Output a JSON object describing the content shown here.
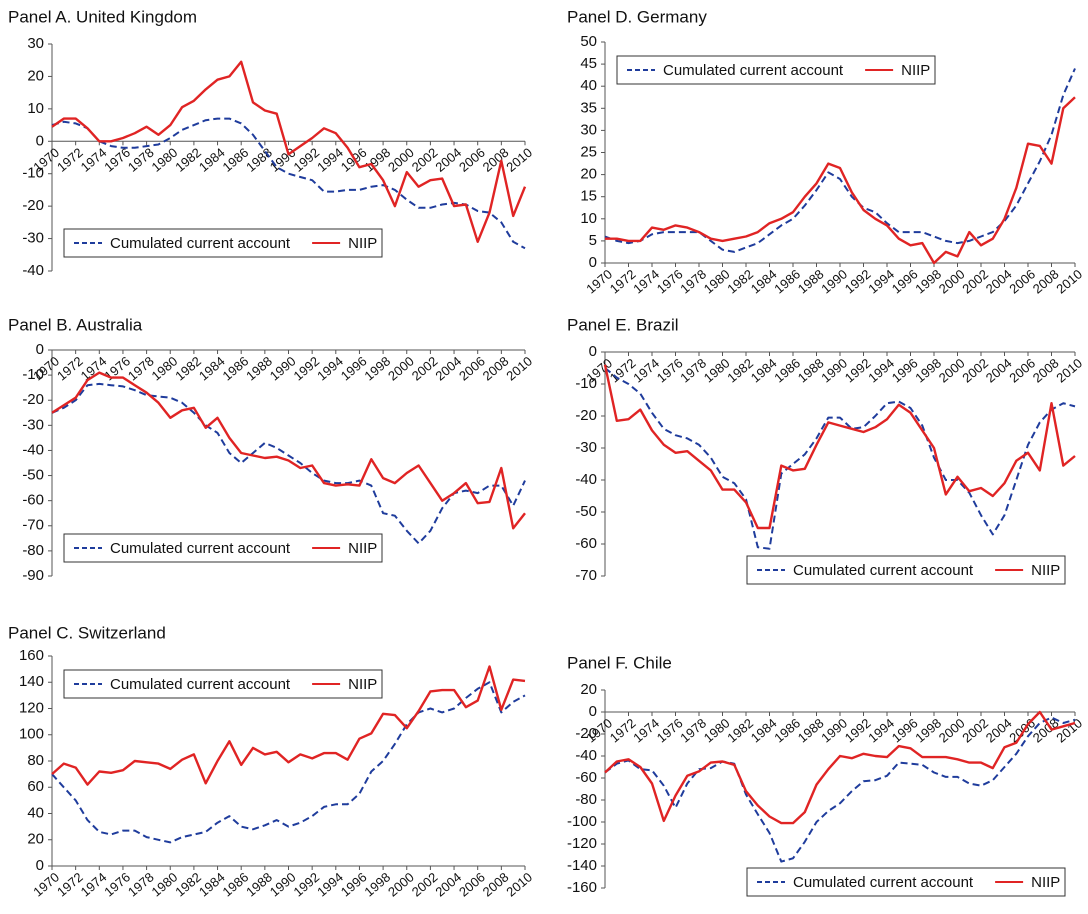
{
  "chart_data": [
    {
      "type": "line",
      "title": "Panel A. United Kingdom",
      "legend": "lower left",
      "x": [
        1970,
        1971,
        1972,
        1973,
        1974,
        1975,
        1976,
        1977,
        1978,
        1979,
        1980,
        1981,
        1982,
        1983,
        1984,
        1985,
        1986,
        1987,
        1988,
        1989,
        1990,
        1991,
        1992,
        1993,
        1994,
        1995,
        1996,
        1997,
        1998,
        1999,
        2000,
        2001,
        2002,
        2003,
        2004,
        2005,
        2006,
        2007,
        2008,
        2009,
        2010
      ],
      "xlim": [
        1970,
        2010
      ],
      "xticks": [
        1970,
        1972,
        1974,
        1976,
        1978,
        1980,
        1982,
        1984,
        1986,
        1988,
        1990,
        1992,
        1994,
        1996,
        1998,
        2000,
        2002,
        2004,
        2006,
        2008,
        2010
      ],
      "ylim": [
        -40,
        30
      ],
      "yticks": [
        -40,
        -30,
        -20,
        -10,
        0,
        10,
        20,
        30
      ],
      "series": [
        {
          "name": "Cumulated current account",
          "color": "#1f3c9c",
          "style": "dashed",
          "values": [
            5,
            6,
            5.5,
            4,
            0,
            -1.5,
            -2,
            -2,
            -1.5,
            -1,
            1,
            3.5,
            5,
            6.5,
            7,
            7,
            5.5,
            2,
            -3,
            -8,
            -10,
            -11,
            -12,
            -15.5,
            -15.5,
            -15,
            -15,
            -14,
            -13.5,
            -15,
            -18,
            -20.5,
            -20.5,
            -19.5,
            -19,
            -19.5,
            -21.5,
            -22,
            -25,
            -31,
            -33
          ]
        },
        {
          "name": "NIIP",
          "color": "#e02424",
          "style": "solid",
          "values": [
            4.5,
            7,
            7,
            4,
            0,
            0,
            1,
            2.5,
            4.5,
            2,
            5,
            10.5,
            12.5,
            16,
            19,
            20,
            24.5,
            12,
            9.5,
            8.5,
            -4,
            -1.5,
            1,
            4,
            2.5,
            -2,
            -8,
            -7,
            -12,
            -20,
            -9.5,
            -14,
            -12,
            -11.5,
            -20,
            -19.5,
            -31,
            -22,
            -6,
            -23,
            -14
          ]
        }
      ]
    },
    {
      "type": "line",
      "title": "Panel B. Australia",
      "legend": "lower left",
      "x": [
        1970,
        1971,
        1972,
        1973,
        1974,
        1975,
        1976,
        1977,
        1978,
        1979,
        1980,
        1981,
        1982,
        1983,
        1984,
        1985,
        1986,
        1987,
        1988,
        1989,
        1990,
        1991,
        1992,
        1993,
        1994,
        1995,
        1996,
        1997,
        1998,
        1999,
        2000,
        2001,
        2002,
        2003,
        2004,
        2005,
        2006,
        2007,
        2008,
        2009,
        2010
      ],
      "xlim": [
        1970,
        2010
      ],
      "xticks": [
        1970,
        1972,
        1974,
        1976,
        1978,
        1980,
        1982,
        1984,
        1986,
        1988,
        1990,
        1992,
        1994,
        1996,
        1998,
        2000,
        2002,
        2004,
        2006,
        2008,
        2010
      ],
      "ylim": [
        -90,
        0
      ],
      "yticks": [
        -90,
        -80,
        -70,
        -60,
        -50,
        -40,
        -30,
        -20,
        -10,
        0
      ],
      "series": [
        {
          "name": "Cumulated current account",
          "color": "#1f3c9c",
          "style": "dashed",
          "values": [
            -25,
            -23,
            -20,
            -14,
            -13.5,
            -14,
            -14.5,
            -16,
            -18,
            -18.5,
            -19,
            -21,
            -25,
            -30,
            -33,
            -41,
            -45,
            -41,
            -37,
            -39,
            -42,
            -45,
            -49,
            -52,
            -53,
            -53,
            -52,
            -54,
            -65,
            -66,
            -72,
            -77,
            -72,
            -63,
            -57,
            -56,
            -57,
            -54,
            -54,
            -62,
            -52
          ]
        },
        {
          "name": "NIIP",
          "color": "#e02424",
          "style": "solid",
          "values": [
            -25,
            -22,
            -19,
            -12,
            -9,
            -11,
            -11,
            -14,
            -17,
            -21,
            -27,
            -24,
            -23,
            -31,
            -27,
            -35,
            -41,
            -42,
            -43,
            -42.5,
            -44,
            -47,
            -46,
            -53,
            -54,
            -53.5,
            -54,
            -43.5,
            -51,
            -53,
            -49,
            -46,
            -53,
            -60,
            -57,
            -53,
            -61,
            -60.5,
            -47,
            -71,
            -65
          ]
        }
      ]
    },
    {
      "type": "line",
      "title": "Panel C. Switzerland",
      "legend": "upper left",
      "x": [
        1970,
        1971,
        1972,
        1973,
        1974,
        1975,
        1976,
        1977,
        1978,
        1979,
        1980,
        1981,
        1982,
        1983,
        1984,
        1985,
        1986,
        1987,
        1988,
        1989,
        1990,
        1991,
        1992,
        1993,
        1994,
        1995,
        1996,
        1997,
        1998,
        1999,
        2000,
        2001,
        2002,
        2003,
        2004,
        2005,
        2006,
        2007,
        2008,
        2009,
        2010
      ],
      "xlim": [
        1970,
        2010
      ],
      "xticks": [
        1970,
        1972,
        1974,
        1976,
        1978,
        1980,
        1982,
        1984,
        1986,
        1988,
        1990,
        1992,
        1994,
        1996,
        1998,
        2000,
        2002,
        2004,
        2006,
        2008,
        2010
      ],
      "ylim": [
        0,
        160
      ],
      "yticks": [
        0,
        20,
        40,
        60,
        80,
        100,
        120,
        140,
        160
      ],
      "series": [
        {
          "name": "Cumulated current account",
          "color": "#1f3c9c",
          "style": "dashed",
          "values": [
            70,
            60,
            50,
            35,
            26,
            24,
            27,
            27,
            22,
            20,
            18,
            22,
            24,
            26,
            33,
            38,
            30,
            28,
            31,
            35,
            30,
            33,
            38,
            45,
            47,
            47,
            55,
            72,
            80,
            93,
            108,
            117,
            120,
            117,
            120,
            128,
            135,
            140,
            117,
            125,
            130
          ]
        },
        {
          "name": "NIIP",
          "color": "#e02424",
          "style": "solid",
          "values": [
            70,
            78,
            75,
            62,
            72,
            71,
            73,
            80,
            79,
            78,
            74,
            81,
            85,
            63,
            80,
            95,
            77,
            90,
            85,
            87,
            79,
            85,
            82,
            86,
            86,
            81,
            97,
            101,
            116,
            115,
            105,
            118,
            133,
            134,
            134,
            121,
            126,
            152,
            119,
            142,
            141
          ]
        }
      ]
    },
    {
      "type": "line",
      "title": "Panel D. Germany",
      "legend": "upper left",
      "x": [
        1970,
        1971,
        1972,
        1973,
        1974,
        1975,
        1976,
        1977,
        1978,
        1979,
        1980,
        1981,
        1982,
        1983,
        1984,
        1985,
        1986,
        1987,
        1988,
        1989,
        1990,
        1991,
        1992,
        1993,
        1994,
        1995,
        1996,
        1997,
        1998,
        1999,
        2000,
        2001,
        2002,
        2003,
        2004,
        2005,
        2006,
        2007,
        2008,
        2009,
        2010
      ],
      "xlim": [
        1970,
        2010
      ],
      "xticks": [
        1970,
        1972,
        1974,
        1976,
        1978,
        1980,
        1982,
        1984,
        1986,
        1988,
        1990,
        1992,
        1994,
        1996,
        1998,
        2000,
        2002,
        2004,
        2006,
        2008,
        2010
      ],
      "ylim": [
        0,
        50
      ],
      "yticks": [
        0,
        5,
        10,
        15,
        20,
        25,
        30,
        35,
        40,
        45,
        50
      ],
      "series": [
        {
          "name": "Cumulated current account",
          "color": "#1f3c9c",
          "style": "dashed",
          "values": [
            6,
            5,
            4.5,
            5,
            6.5,
            7,
            7,
            7,
            7,
            5,
            3,
            2.5,
            3.5,
            4.5,
            6.5,
            8.5,
            10,
            13,
            16.5,
            20.5,
            19,
            15,
            12.5,
            11.5,
            9,
            7,
            7,
            7,
            6,
            5,
            4.5,
            5,
            6,
            7,
            9.5,
            13,
            18,
            23,
            29,
            38,
            44
          ]
        },
        {
          "name": "NIIP",
          "color": "#e02424",
          "style": "solid",
          "values": [
            5.5,
            5.5,
            5,
            5,
            8,
            7.5,
            8.5,
            8,
            7,
            5.5,
            5,
            5.5,
            6,
            7,
            9,
            10,
            11.5,
            15,
            18,
            22.5,
            21.5,
            16,
            12,
            10,
            8.5,
            5.5,
            4,
            4.5,
            0,
            2.5,
            1.5,
            7,
            4,
            5.5,
            10,
            17,
            27,
            26.5,
            22.5,
            35,
            37.5
          ]
        }
      ]
    },
    {
      "type": "line",
      "title": "Panel E. Brazil",
      "legend": "lower right",
      "x": [
        1970,
        1971,
        1972,
        1973,
        1974,
        1975,
        1976,
        1977,
        1978,
        1979,
        1980,
        1981,
        1982,
        1983,
        1984,
        1985,
        1986,
        1987,
        1988,
        1989,
        1990,
        1991,
        1992,
        1993,
        1994,
        1995,
        1996,
        1997,
        1998,
        1999,
        2000,
        2001,
        2002,
        2003,
        2004,
        2005,
        2006,
        2007,
        2008,
        2009,
        2010
      ],
      "xlim": [
        1970,
        2010
      ],
      "xticks": [
        1970,
        1972,
        1974,
        1976,
        1978,
        1980,
        1982,
        1984,
        1986,
        1988,
        1990,
        1992,
        1994,
        1996,
        1998,
        2000,
        2002,
        2004,
        2006,
        2008,
        2010
      ],
      "ylim": [
        -70,
        0
      ],
      "yticks": [
        -70,
        -60,
        -50,
        -40,
        -30,
        -20,
        -10,
        0
      ],
      "series": [
        {
          "name": "Cumulated current account",
          "color": "#1f3c9c",
          "style": "dashed",
          "values": [
            -5,
            -8,
            -10,
            -13,
            -19,
            -24,
            -26,
            -27,
            -29,
            -33,
            -39,
            -41,
            -46,
            -61,
            -61.5,
            -38,
            -35,
            -32,
            -27,
            -20.5,
            -20.5,
            -24,
            -23.5,
            -20,
            -16,
            -15.5,
            -17.5,
            -23,
            -33,
            -40,
            -40,
            -44,
            -51,
            -57,
            -51,
            -40,
            -29,
            -22,
            -18,
            -16,
            -17
          ]
        },
        {
          "name": "NIIP",
          "color": "#e02424",
          "style": "solid",
          "values": [
            -4,
            -21.5,
            -21,
            -18,
            -24.5,
            -29,
            -31.5,
            -31,
            -34,
            -37,
            -43,
            -43,
            -47,
            -55,
            -55,
            -35.5,
            -37,
            -36.5,
            -29,
            -22,
            -23,
            -24,
            -25,
            -23.5,
            -21,
            -16.5,
            -19,
            -24.5,
            -30,
            -44.5,
            -39,
            -43.5,
            -42.5,
            -45,
            -41,
            -34,
            -31.5,
            -37,
            -16,
            -35.5,
            -32.5
          ]
        }
      ]
    },
    {
      "type": "line",
      "title": "Panel F. Chile",
      "legend": "lower right",
      "x": [
        1970,
        1971,
        1972,
        1973,
        1974,
        1975,
        1976,
        1977,
        1978,
        1979,
        1980,
        1981,
        1982,
        1983,
        1984,
        1985,
        1986,
        1987,
        1988,
        1989,
        1990,
        1991,
        1992,
        1993,
        1994,
        1995,
        1996,
        1997,
        1998,
        1999,
        2000,
        2001,
        2002,
        2003,
        2004,
        2005,
        2006,
        2007,
        2008,
        2009,
        2010
      ],
      "xlim": [
        1970,
        2010
      ],
      "xticks": [
        1970,
        1972,
        1974,
        1976,
        1978,
        1980,
        1982,
        1984,
        1986,
        1988,
        1990,
        1992,
        1994,
        1996,
        1998,
        2000,
        2002,
        2004,
        2006,
        2008,
        2010
      ],
      "ylim": [
        -160,
        20
      ],
      "yticks": [
        -160,
        -140,
        -120,
        -100,
        -80,
        -60,
        -40,
        -20,
        0,
        20
      ],
      "series": [
        {
          "name": "Cumulated current account",
          "color": "#1f3c9c",
          "style": "dashed",
          "values": [
            -55,
            -47,
            -44,
            -52,
            -53,
            -67,
            -87,
            -65,
            -52,
            -51,
            -45,
            -47,
            -75,
            -93,
            -110,
            -136,
            -133,
            -118,
            -100,
            -90,
            -83,
            -72,
            -63,
            -62,
            -58,
            -46,
            -47,
            -48,
            -55,
            -59,
            -59,
            -65,
            -67,
            -62,
            -50,
            -38,
            -22,
            -10,
            -5,
            -10,
            -7
          ]
        },
        {
          "name": "NIIP",
          "color": "#e02424",
          "style": "solid",
          "values": [
            -55,
            -45,
            -43,
            -50,
            -65,
            -99,
            -76,
            -58,
            -54,
            -46,
            -45,
            -48,
            -72,
            -85,
            -95,
            -101,
            -101,
            -91,
            -66,
            -52,
            -40,
            -42,
            -38,
            -40,
            -41,
            -31,
            -33,
            -41,
            -41,
            -41,
            -43,
            -46,
            -46,
            -51,
            -32,
            -28,
            -11,
            0,
            -16,
            -13,
            -10
          ]
        }
      ]
    }
  ]
}
